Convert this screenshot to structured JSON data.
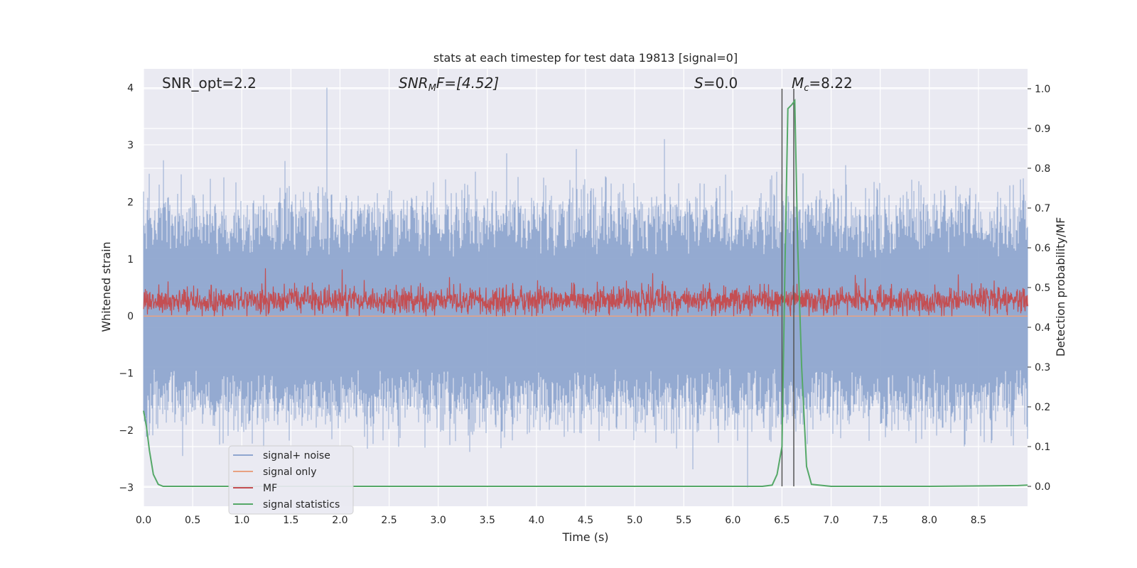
{
  "chart_data": {
    "type": "line",
    "title": "stats at each timestep for test data 19813 [signal=0]",
    "xlabel": "Time (s)",
    "ylabel_left": "Whitened strain",
    "ylabel_right": "Detection probability/MF",
    "xlim": [
      0.0,
      9.0
    ],
    "ylim_left": [
      -3.33,
      4.33
    ],
    "ylim_right": [
      -0.05,
      1.05
    ],
    "x_ticks": [
      "0.0",
      "0.5",
      "1.0",
      "1.5",
      "2.0",
      "2.5",
      "3.0",
      "3.5",
      "4.0",
      "4.5",
      "5.0",
      "5.5",
      "6.0",
      "6.5",
      "7.0",
      "7.5",
      "8.0",
      "8.5"
    ],
    "x_tick_values": [
      0.0,
      0.5,
      1.0,
      1.5,
      2.0,
      2.5,
      3.0,
      3.5,
      4.0,
      4.5,
      5.0,
      5.5,
      6.0,
      6.5,
      7.0,
      7.5,
      8.0,
      8.5
    ],
    "y_ticks_left": [
      "−3",
      "−2",
      "−1",
      "0",
      "1",
      "2",
      "3",
      "4"
    ],
    "y_tick_values_left": [
      -3,
      -2,
      -1,
      0,
      1,
      2,
      3,
      4
    ],
    "y_ticks_right": [
      "0.0",
      "0.1",
      "0.2",
      "0.3",
      "0.4",
      "0.5",
      "0.6",
      "0.7",
      "0.8",
      "0.9",
      "1.0"
    ],
    "y_tick_values_right": [
      0.0,
      0.1,
      0.2,
      0.3,
      0.4,
      0.5,
      0.6,
      0.7,
      0.8,
      0.9,
      1.0
    ],
    "grid": true,
    "legend_position": "bottom-left",
    "annotations": {
      "snr_opt": "SNR_opt=2.2",
      "snr_mf_base": "SNR",
      "snr_mf_sub": "M",
      "snr_mf_tail": "F=[4.52]",
      "s_label": "S",
      "s_value": "=0.0",
      "mc_label": "M",
      "mc_sub": "c",
      "mc_value": "=8.22"
    },
    "vertical_lines_x": [
      6.5,
      6.62
    ],
    "series": [
      {
        "name": "signal+ noise",
        "color": "#8fa6cf",
        "axis": "left",
        "description": "dense whitened-strain noise trace, roughly gaussian, spanning about -3 to 4",
        "envelope": {
          "min": -3.0,
          "max": 4.0,
          "typical_low": -1.6,
          "typical_high": 1.8
        },
        "peaks": [
          [
            0.2,
            2.73
          ],
          [
            1.87,
            4.0
          ],
          [
            3.7,
            2.85
          ],
          [
            5.3,
            3.1
          ],
          [
            6.15,
            -3.0
          ]
        ]
      },
      {
        "name": "signal only",
        "color": "#e8a282",
        "axis": "left",
        "description": "flat zero signal",
        "x": [
          0.0,
          9.0
        ],
        "y": [
          0.0,
          0.0
        ]
      },
      {
        "name": "MF",
        "color": "#c44e52",
        "axis": "left",
        "description": "matched filter output fluctuating between ~0 and ~0.9",
        "envelope": {
          "min": 0.0,
          "max": 0.9,
          "mean": 0.27
        }
      },
      {
        "name": "signal statistics",
        "color": "#55a868",
        "axis": "right",
        "x": [
          0.0,
          0.03,
          0.06,
          0.1,
          0.15,
          0.2,
          0.3,
          0.5,
          1.0,
          2.0,
          3.0,
          4.0,
          5.0,
          6.0,
          6.3,
          6.4,
          6.45,
          6.5,
          6.53,
          6.56,
          6.6,
          6.63,
          6.66,
          6.7,
          6.75,
          6.8,
          7.0,
          8.0,
          8.9,
          9.0
        ],
        "y": [
          0.19,
          0.15,
          0.09,
          0.03,
          0.005,
          0.0,
          0.0,
          0.0,
          0.0,
          0.0,
          0.0,
          0.0,
          0.0,
          0.0,
          0.0,
          0.003,
          0.03,
          0.1,
          0.55,
          0.95,
          0.96,
          0.97,
          0.6,
          0.3,
          0.05,
          0.005,
          0.0,
          0.0,
          0.002,
          0.003
        ]
      }
    ]
  }
}
